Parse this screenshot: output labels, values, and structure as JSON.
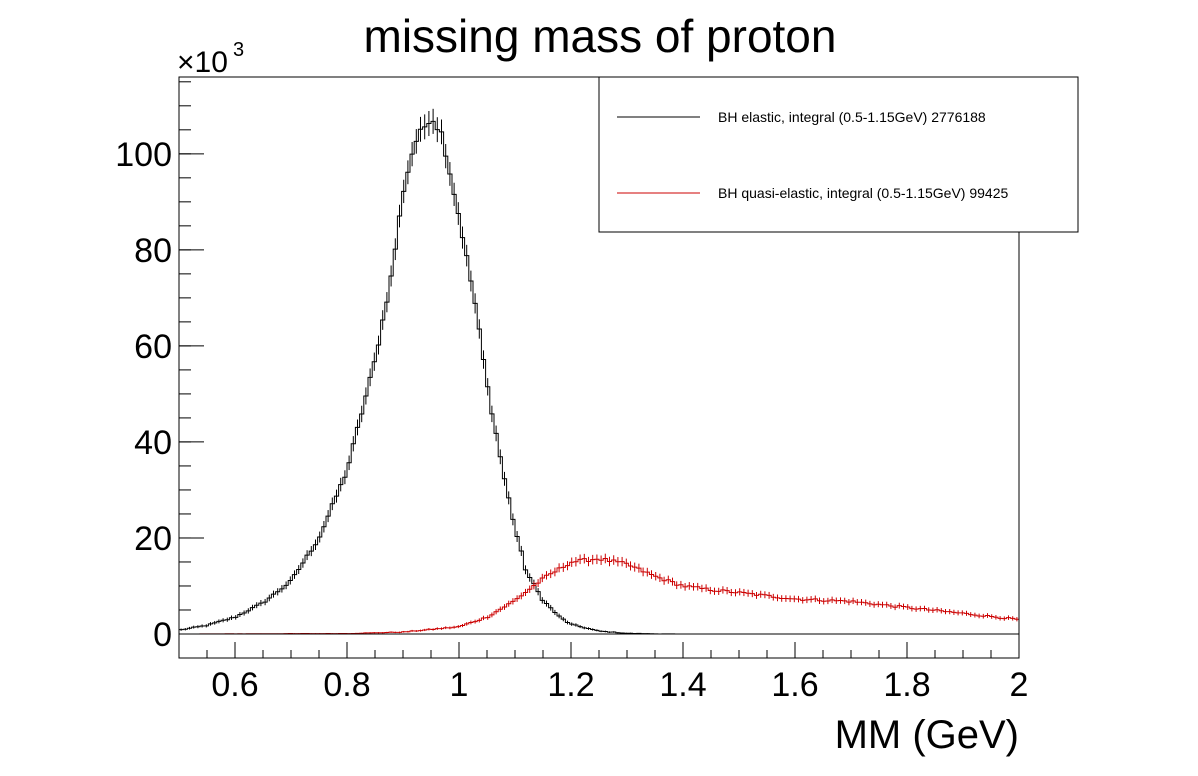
{
  "chart_data": {
    "type": "line",
    "title": "missing mass of proton",
    "xlabel": "MM (GeV)",
    "ylabel": "",
    "xlim": [
      0.5,
      2.0
    ],
    "ylim": [
      -5000,
      116000
    ],
    "y_multiplier_label": "×10",
    "y_multiplier_exponent": "3",
    "x_ticks": [
      0.6,
      0.8,
      1.0,
      1.2,
      1.4,
      1.6,
      1.8,
      2.0
    ],
    "x_tick_labels": [
      "0.6",
      "0.8",
      "1",
      "1.2",
      "1.4",
      "1.6",
      "1.8",
      "2"
    ],
    "y_ticks": [
      0,
      20000,
      40000,
      60000,
      80000,
      100000
    ],
    "y_tick_labels": [
      "0",
      "20",
      "40",
      "60",
      "80",
      "100"
    ],
    "grid": false,
    "legend_position": "top-right",
    "series": [
      {
        "name": "BH elastic, integral (0.5-1.15GeV) 2776188",
        "color": "#000000",
        "points": [
          [
            0.5,
            800
          ],
          [
            0.55,
            1800
          ],
          [
            0.6,
            3500
          ],
          [
            0.65,
            6500
          ],
          [
            0.7,
            11000
          ],
          [
            0.75,
            20000
          ],
          [
            0.8,
            34000
          ],
          [
            0.85,
            57000
          ],
          [
            0.88,
            75000
          ],
          [
            0.9,
            92000
          ],
          [
            0.92,
            102000
          ],
          [
            0.95,
            108000
          ],
          [
            0.97,
            104000
          ],
          [
            1.0,
            87000
          ],
          [
            1.03,
            68000
          ],
          [
            1.05,
            52000
          ],
          [
            1.08,
            33000
          ],
          [
            1.1,
            22000
          ],
          [
            1.12,
            13000
          ],
          [
            1.15,
            7000
          ],
          [
            1.18,
            3500
          ],
          [
            1.2,
            2000
          ],
          [
            1.25,
            600
          ],
          [
            1.3,
            150
          ],
          [
            1.35,
            30
          ],
          [
            1.4,
            0
          ],
          [
            2.0,
            0
          ]
        ]
      },
      {
        "name": "BH quasi-elastic, integral (0.5-1.15GeV) 99425",
        "color": "#cc0000",
        "points": [
          [
            0.5,
            0
          ],
          [
            0.8,
            100
          ],
          [
            0.9,
            400
          ],
          [
            1.0,
            1500
          ],
          [
            1.05,
            3500
          ],
          [
            1.1,
            7000
          ],
          [
            1.15,
            11500
          ],
          [
            1.2,
            15000
          ],
          [
            1.25,
            15700
          ],
          [
            1.3,
            14500
          ],
          [
            1.35,
            12000
          ],
          [
            1.4,
            10000
          ],
          [
            1.45,
            9200
          ],
          [
            1.5,
            8600
          ],
          [
            1.6,
            7300
          ],
          [
            1.7,
            6800
          ],
          [
            1.8,
            5500
          ],
          [
            1.9,
            4300
          ],
          [
            2.0,
            3000
          ]
        ]
      }
    ]
  }
}
